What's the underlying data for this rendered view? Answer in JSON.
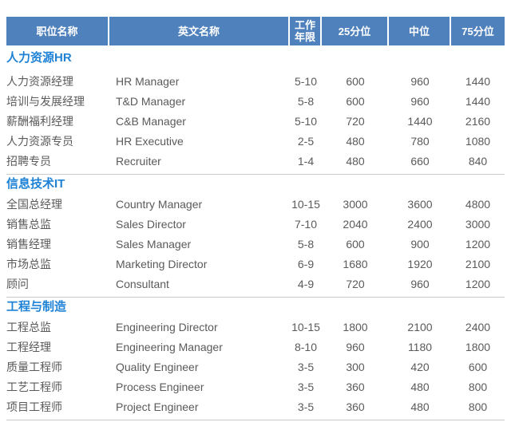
{
  "colors": {
    "header_bg": "#4f81bd",
    "header_text": "#ffffff",
    "section_title_text": "#1e82d6",
    "body_text": "#5a5a5a",
    "divider": "#c9c9c9"
  },
  "table": {
    "columns": [
      {
        "key": "position",
        "label": "职位名称"
      },
      {
        "key": "english-name",
        "label": "英文名称"
      },
      {
        "key": "work-years",
        "label": "工作年限"
      },
      {
        "key": "p25",
        "label": "25分位"
      },
      {
        "key": "median",
        "label": "中位"
      },
      {
        "key": "p75",
        "label": "75分位"
      }
    ],
    "sections": [
      {
        "title": "人力资源HR",
        "rows": [
          [
            "人力资源经理",
            "HR Manager",
            "5-10",
            "600",
            "960",
            "1440"
          ],
          [
            "培训与发展经理",
            "T&D Manager",
            "5-8",
            "600",
            "960",
            "1440"
          ],
          [
            "薪酬福利经理",
            "C&B Manager",
            "5-10",
            "720",
            "1440",
            "2160"
          ],
          [
            "人力资源专员",
            "HR Executive",
            "2-5",
            "480",
            "780",
            "1080"
          ],
          [
            "招聘专员",
            "Recruiter",
            "1-4",
            "480",
            "660",
            "840"
          ]
        ]
      },
      {
        "title": "信息技术IT",
        "rows": [
          [
            "全国总经理",
            "Country Manager",
            "10-15",
            "3000",
            "3600",
            "4800"
          ],
          [
            "销售总监",
            "Sales Director",
            "7-10",
            "2040",
            "2400",
            "3000"
          ],
          [
            "销售经理",
            "Sales Manager",
            "5-8",
            "600",
            "900",
            "1200"
          ],
          [
            "市场总监",
            "Marketing Director",
            "6-9",
            "1680",
            "1920",
            "2100"
          ],
          [
            "顾问",
            "Consultant",
            "4-9",
            "720",
            "960",
            "1200"
          ]
        ]
      },
      {
        "title": "工程与制造",
        "rows": [
          [
            "工程总监",
            "Engineering Director",
            "10-15",
            "1800",
            "2100",
            "2400"
          ],
          [
            "工程经理",
            "Engineering Manager",
            "8-10",
            "960",
            "1180",
            "1800"
          ],
          [
            "质量工程师",
            "Quality Engineer",
            "3-5",
            "300",
            "420",
            "600"
          ],
          [
            "工艺工程师",
            "Process Engineer",
            "3-5",
            "360",
            "480",
            "800"
          ],
          [
            "项目工程师",
            "Project Engineer",
            "3-5",
            "360",
            "480",
            "800"
          ]
        ]
      }
    ]
  }
}
